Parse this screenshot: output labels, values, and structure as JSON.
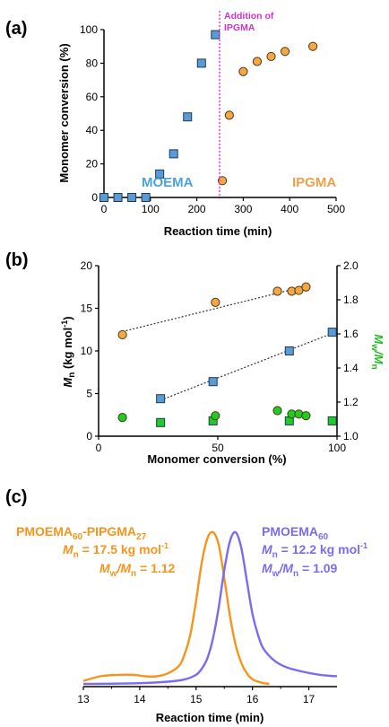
{
  "colors": {
    "blue_marker": "#5b9bd5",
    "orange_marker": "#f4a742",
    "green_marker": "#1fcc1f",
    "divider": "#ff33ff",
    "trace_orange": "#f7941d",
    "trace_blue": "#7a6cf0",
    "moema_label": "#4aa3df",
    "ipgma_label": "#f0a04b",
    "pinstr": "#cc33cc",
    "mwmn_axis": "#22bb22"
  },
  "chart_data": [
    {
      "panel_label": "(a)",
      "type": "scatter",
      "xlabel": "Reaction time (min)",
      "ylabel": "Monomer conversion (%)",
      "xlim": [
        0,
        500
      ],
      "ylim": [
        0,
        100
      ],
      "xticks": [
        "0",
        "100",
        "200",
        "300",
        "400",
        "500"
      ],
      "yticks": [
        "0",
        "20",
        "40",
        "60",
        "80",
        "100"
      ],
      "series": [
        {
          "name": "MOEMA",
          "marker": "square",
          "color": "#5b9bd5",
          "x": [
            0,
            30,
            60,
            90,
            120,
            150,
            180,
            210,
            240
          ],
          "y": [
            0,
            0,
            0,
            0,
            14,
            26,
            48,
            80,
            97
          ]
        },
        {
          "name": "IPGMA",
          "marker": "circle",
          "color": "#f4a742",
          "x": [
            255,
            270,
            300,
            330,
            360,
            390,
            450
          ],
          "y": [
            10,
            49,
            75,
            81,
            84,
            87,
            90
          ]
        }
      ],
      "annotation": {
        "text_line1": "Addition of",
        "text_line2": "IPGMA",
        "x": 245
      }
    },
    {
      "panel_label": "(b)",
      "type": "scatter",
      "xlabel": "Monomer conversion (%)",
      "ylabel": "Mn (kg mol-1)",
      "ylabel_main": "M",
      "ylabel_sub": "n",
      "ylabel_rest": " (kg mol",
      "ylabel_sup": "-1",
      "ylabel_close": ")",
      "y2label_main": "M",
      "y2label_sub1": "w",
      "y2label_mid": "/M",
      "y2label_sub2": "n",
      "xlim": [
        0,
        100
      ],
      "ylim": [
        0,
        20
      ],
      "y2lim": [
        1.0,
        2.0
      ],
      "xticks": [
        "0",
        "50",
        "100"
      ],
      "yticks": [
        "0",
        "5",
        "10",
        "15",
        "20"
      ],
      "y2ticks": [
        "1.0",
        "1.2",
        "1.4",
        "1.6",
        "1.8",
        "2.0"
      ],
      "series": [
        {
          "name": "Mn MOEMA",
          "axis": "left",
          "marker": "square",
          "color": "#5b9bd5",
          "x": [
            26,
            48,
            80,
            98
          ],
          "y": [
            4.4,
            6.4,
            10.0,
            12.2
          ],
          "trend": true
        },
        {
          "name": "Mn IPGMA",
          "axis": "left",
          "marker": "circle",
          "color": "#f4a742",
          "x": [
            10,
            49,
            75,
            81,
            84,
            87
          ],
          "y": [
            11.9,
            15.7,
            17.0,
            17.0,
            17.1,
            17.5
          ],
          "trend": true
        },
        {
          "name": "Mw/Mn MOEMA",
          "axis": "right",
          "marker": "square",
          "color": "#1fcc1f",
          "x": [
            26,
            48,
            80,
            98
          ],
          "y": [
            1.08,
            1.09,
            1.09,
            1.09
          ]
        },
        {
          "name": "Mw/Mn IPGMA",
          "axis": "right",
          "marker": "circle",
          "color": "#1fcc1f",
          "x": [
            10,
            49,
            75,
            81,
            84,
            87
          ],
          "y": [
            1.11,
            1.12,
            1.15,
            1.13,
            1.13,
            1.12
          ]
        }
      ]
    },
    {
      "panel_label": "(c)",
      "type": "line",
      "xlabel": "Reaction time (min)",
      "xlim": [
        13,
        17.5
      ],
      "xticks": [
        "13",
        "14",
        "15",
        "16",
        "17"
      ],
      "series": [
        {
          "name": "PMOEMA60-PIPGMA27",
          "color": "#f7941d",
          "x": [
            13.0,
            13.3,
            13.6,
            13.9,
            14.1,
            14.3,
            14.5,
            14.7,
            14.8,
            14.9,
            15.0,
            15.1,
            15.2,
            15.3,
            15.4,
            15.5,
            15.6,
            15.7,
            15.8,
            15.9,
            16.0,
            16.1,
            16.2,
            16.3
          ],
          "y": [
            0.02,
            0.05,
            0.06,
            0.06,
            0.05,
            0.05,
            0.07,
            0.12,
            0.2,
            0.33,
            0.55,
            0.8,
            0.96,
            1.0,
            0.92,
            0.7,
            0.45,
            0.26,
            0.14,
            0.07,
            0.03,
            0.015,
            0.005,
            0.0
          ]
        },
        {
          "name": "PMOEMA60",
          "color": "#7a6cf0",
          "x": [
            13.0,
            14.0,
            14.5,
            14.8,
            15.0,
            15.1,
            15.2,
            15.3,
            15.4,
            15.5,
            15.6,
            15.7,
            15.8,
            15.9,
            16.0,
            16.1,
            16.2,
            16.4,
            16.6,
            16.9,
            17.2,
            17.5
          ],
          "y": [
            0.0,
            0.005,
            0.015,
            0.03,
            0.06,
            0.1,
            0.17,
            0.3,
            0.5,
            0.75,
            0.94,
            1.0,
            0.9,
            0.68,
            0.46,
            0.32,
            0.23,
            0.15,
            0.11,
            0.08,
            0.06,
            0.05
          ]
        }
      ],
      "labels": {
        "orange_name_main": "PMOEMA",
        "orange_name_sub1": "60",
        "orange_name_mid": "-PIPGMA",
        "orange_name_sub2": "27",
        "orange_mn": "17.5 kg mol",
        "orange_mn_sup": "-1",
        "orange_dispersity": "1.12",
        "blue_name_main": "PMOEMA",
        "blue_name_sub": "60",
        "blue_mn": "12.2 kg mol",
        "blue_mn_sup": "-1",
        "blue_dispersity": "1.09",
        "mn_M": "M",
        "mn_n": "n",
        "eq": " = ",
        "mw_M": "M",
        "mw_w": "w",
        "slash_M": "/M"
      }
    }
  ]
}
